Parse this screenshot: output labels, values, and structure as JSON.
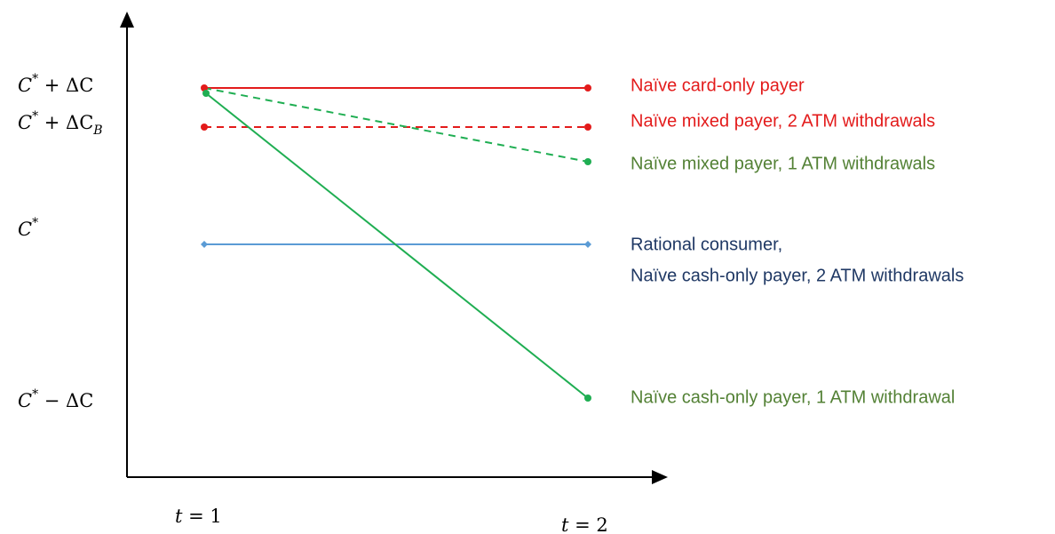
{
  "y_axis_labels": [
    [
      {
        "text": "C",
        "pos": "normal"
      },
      {
        "text": "*",
        "pos": "sup"
      },
      {
        "text": " + ΔC",
        "pos": "normal"
      }
    ],
    [
      {
        "text": "C",
        "pos": "normal"
      },
      {
        "text": "*",
        "pos": "sup"
      },
      {
        "text": " + ΔC",
        "pos": "normal"
      },
      {
        "text": "B",
        "pos": "sub"
      }
    ],
    [
      {
        "text": "C",
        "pos": "normal"
      },
      {
        "text": "*",
        "pos": "sup"
      }
    ],
    [
      {
        "text": "C",
        "pos": "normal"
      },
      {
        "text": "*",
        "pos": "sup"
      },
      {
        "text": " − ΔC",
        "pos": "normal"
      }
    ]
  ],
  "x_axis_labels": [
    [
      {
        "text": "t",
        "pos": "normal"
      },
      {
        "text": " = 1",
        "pos": "normal"
      }
    ],
    [
      {
        "text": "t",
        "pos": "normal"
      },
      {
        "text": " = 2",
        "pos": "normal"
      }
    ]
  ],
  "series_labels": [
    "Naïve card-only payer",
    "Naïve mixed payer, 2 ATM withdrawals",
    "Naïve mixed payer, 1 ATM withdrawals",
    "Rational consumer,",
    "Naïve cash-only payer, 2 ATM withdrawals",
    "Naïve cash-only payer, 1 ATM withdrawal"
  ]
}
